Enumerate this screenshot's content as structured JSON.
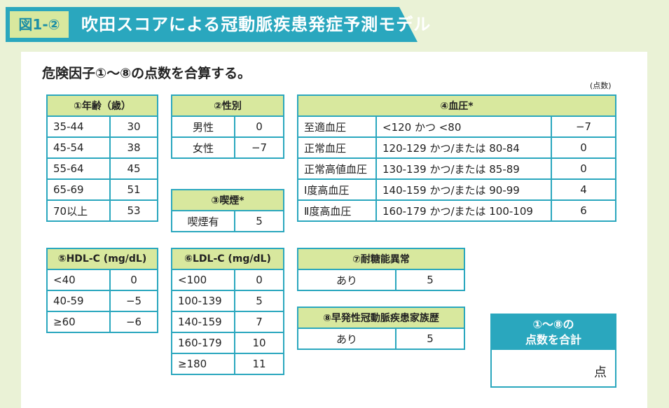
{
  "header": {
    "figure_label": "図1-②",
    "title": "吹田スコアによる冠動脈疾患発症予測モデル"
  },
  "instruction": "危険因子①～⑧の点数を合算する。",
  "unit_note": "(点数)",
  "age": {
    "header": "①年齢（歳）",
    "rows": [
      {
        "range": "35-44",
        "points": "30"
      },
      {
        "range": "45-54",
        "points": "38"
      },
      {
        "range": "55-64",
        "points": "45"
      },
      {
        "range": "65-69",
        "points": "51"
      },
      {
        "range": "70以上",
        "points": "53"
      }
    ]
  },
  "sex": {
    "header": "②性別",
    "rows": [
      {
        "label": "男性",
        "points": "0"
      },
      {
        "label": "女性",
        "points": "−7"
      }
    ]
  },
  "smoking": {
    "header": "③喫煙*",
    "rows": [
      {
        "label": "喫煙有",
        "points": "5"
      }
    ]
  },
  "bp": {
    "header": "④血圧*",
    "rows": [
      {
        "category": "至適血圧",
        "range": "<120 かつ <80",
        "points": "−7"
      },
      {
        "category": "正常血圧",
        "range": "120-129 かつ/または 80-84",
        "points": "0"
      },
      {
        "category": "正常高値血圧",
        "range": "130-139 かつ/または 85-89",
        "points": "0"
      },
      {
        "category": "Ⅰ度高血圧",
        "range": "140-159 かつ/または 90-99",
        "points": "4"
      },
      {
        "category": "Ⅱ度高血圧",
        "range": "160-179 かつ/または 100-109",
        "points": "6"
      }
    ]
  },
  "hdl": {
    "header": "⑤HDL-C (mg/dL)",
    "rows": [
      {
        "range": "<40",
        "points": "0"
      },
      {
        "range": "40-59",
        "points": "−5"
      },
      {
        "range": "≥60",
        "points": "−6"
      }
    ]
  },
  "ldl": {
    "header": "⑥LDL-C (mg/dL)",
    "rows": [
      {
        "range": "<100",
        "points": "0"
      },
      {
        "range": "100-139",
        "points": "5"
      },
      {
        "range": "140-159",
        "points": "7"
      },
      {
        "range": "160-179",
        "points": "10"
      },
      {
        "range": "≥180",
        "points": "11"
      }
    ]
  },
  "glucose": {
    "header": "⑦耐糖能異常",
    "rows": [
      {
        "label": "あり",
        "points": "5"
      }
    ]
  },
  "family": {
    "header": "⑧早発性冠動脈疾患家族歴",
    "rows": [
      {
        "label": "あり",
        "points": "5"
      }
    ]
  },
  "total": {
    "line1": "①～⑧の",
    "line2": "点数を合計",
    "unit": "点"
  }
}
